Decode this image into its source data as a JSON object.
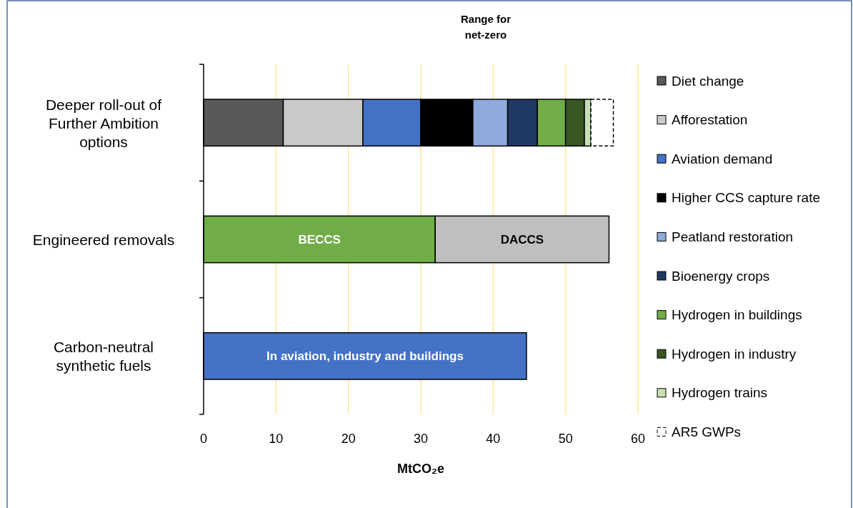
{
  "chart_data": {
    "type": "bar",
    "orientation": "horizontal",
    "stacked": true,
    "xlabel": "MtCO₂e",
    "categories": [
      "Deeper roll-out of Further Ambition options",
      "Engineered removals",
      "Carbon-neutral synthetic fuels"
    ],
    "series": [
      {
        "name": "Diet change",
        "color": "#595959",
        "values": [
          11,
          null,
          null
        ]
      },
      {
        "name": "Afforestation",
        "color": "#c9c9c9",
        "values": [
          11,
          null,
          null
        ]
      },
      {
        "name": "Aviation demand",
        "color": "#4472c4",
        "values": [
          8,
          null,
          null
        ]
      },
      {
        "name": "Higher CCS capture rate",
        "color": "#000000",
        "values": [
          7.2,
          null,
          null
        ]
      },
      {
        "name": "Peatland restoration",
        "color": "#8faadc",
        "values": [
          4.8,
          null,
          null
        ]
      },
      {
        "name": "Bioenergy crops",
        "color": "#203864",
        "values": [
          4.1,
          null,
          null
        ]
      },
      {
        "name": "Hydrogen in buildings",
        "color": "#70ad47",
        "values": [
          3.9,
          null,
          null
        ]
      },
      {
        "name": "Hydrogen in industry",
        "color": "#385723",
        "values": [
          2.6,
          null,
          null
        ]
      },
      {
        "name": "Hydrogen trains",
        "color": "#c5e0b4",
        "values": [
          0.9,
          null,
          null
        ]
      },
      {
        "name": "AR5 GWPs",
        "color": "#ffffff",
        "line_style": "dashed",
        "values": [
          3.1,
          null,
          null
        ]
      },
      {
        "color": "#70ad47",
        "values": [
          null,
          32,
          null
        ]
      },
      {
        "color": "#bfbfbf",
        "values": [
          null,
          24,
          null
        ]
      },
      {
        "color": "#4472c4",
        "values": [
          null,
          null,
          44.6
        ]
      }
    ],
    "xlim": [
      0,
      60
    ],
    "xticks": [
      0,
      10,
      20,
      30,
      40,
      50,
      60
    ],
    "grid": "x",
    "legend": "right",
    "annotations": [
      "Range for net-zero",
      "BECCS",
      "DACCS",
      "In aviation, industry and buildings"
    ]
  }
}
